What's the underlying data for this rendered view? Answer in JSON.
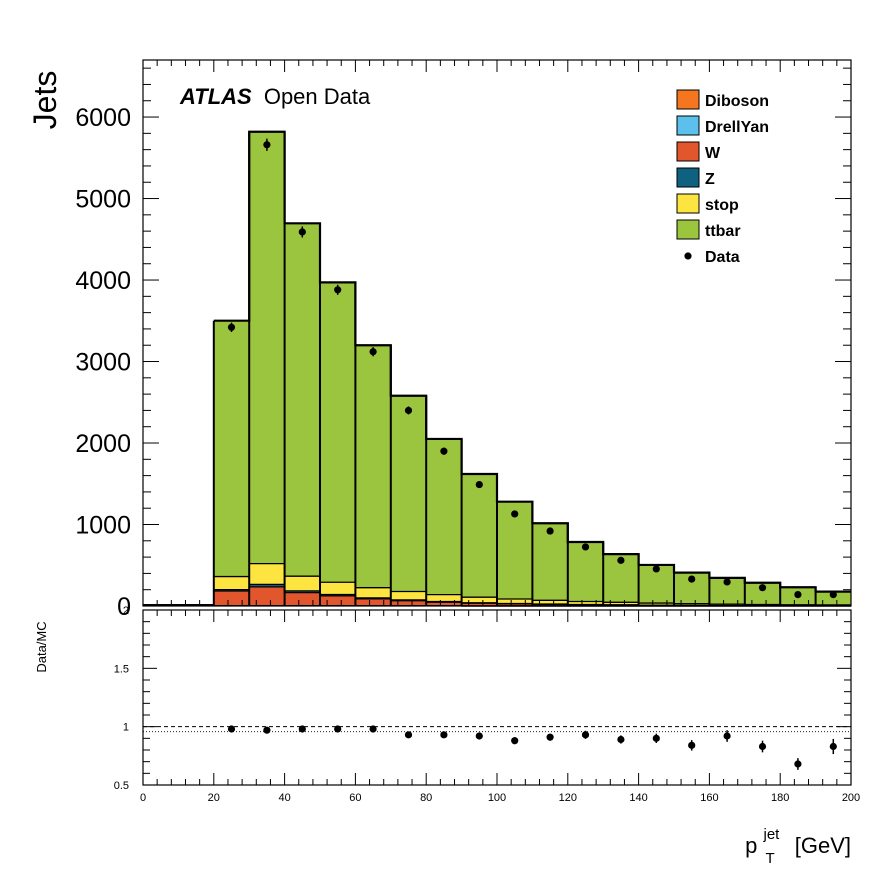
{
  "chart_data": [
    {
      "type": "bar",
      "stacked": true,
      "title": "",
      "ylabel": "Jets",
      "xlim": [
        0,
        200
      ],
      "ylim": [
        0,
        6700
      ],
      "yticks": [
        0,
        1000,
        2000,
        3000,
        4000,
        5000,
        6000
      ],
      "atlas_label": "ATLAS",
      "atlas_sublabel": "Open Data",
      "legend_placement": "top-right",
      "bin_edges": [
        20,
        30,
        40,
        50,
        60,
        70,
        80,
        90,
        100,
        110,
        120,
        130,
        140,
        150,
        160,
        170,
        180,
        190,
        200
      ],
      "series": [
        {
          "name": "Diboson",
          "color": "#f5761f",
          "values": [
            3,
            4,
            3,
            3,
            2,
            2,
            2,
            1,
            1,
            1,
            1,
            1,
            1,
            1,
            1,
            0,
            0,
            0
          ]
        },
        {
          "name": "DrellYan",
          "color": "#5bc0eb",
          "values": [
            1,
            1,
            1,
            1,
            1,
            1,
            0,
            0,
            0,
            0,
            0,
            0,
            0,
            0,
            0,
            0,
            0,
            0
          ]
        },
        {
          "name": "W",
          "color": "#e2562d",
          "values": [
            180,
            230,
            160,
            120,
            85,
            62,
            45,
            33,
            25,
            19,
            14,
            11,
            8,
            6,
            5,
            4,
            3,
            3
          ]
        },
        {
          "name": "Z",
          "color": "#0f6182",
          "values": [
            17,
            30,
            22,
            17,
            12,
            10,
            8,
            6,
            5,
            4,
            3,
            3,
            2,
            2,
            1,
            1,
            1,
            1
          ]
        },
        {
          "name": "stop",
          "color": "#fde440",
          "values": [
            160,
            255,
            180,
            150,
            125,
            103,
            85,
            68,
            55,
            46,
            37,
            30,
            25,
            20,
            16,
            13,
            11,
            9
          ]
        },
        {
          "name": "ttbar",
          "color": "#9bc43f",
          "values": [
            3140,
            5300,
            4330,
            3680,
            2975,
            2402,
            1910,
            1512,
            1194,
            945,
            730,
            592,
            468,
            381,
            322,
            267,
            215,
            163
          ]
        }
      ],
      "data_series": {
        "name": "Data",
        "x": [
          25,
          35,
          45,
          55,
          65,
          75,
          85,
          95,
          105,
          115,
          125,
          135,
          145,
          155,
          165,
          175,
          185,
          195
        ],
        "y": [
          3420,
          5660,
          4590,
          3880,
          3120,
          2400,
          1900,
          1490,
          1130,
          920,
          725,
          560,
          455,
          330,
          295,
          225,
          140,
          140
        ],
        "err": [
          58,
          75,
          68,
          62,
          56,
          49,
          44,
          39,
          34,
          30,
          27,
          24,
          21,
          18,
          17,
          15,
          12,
          12
        ]
      }
    },
    {
      "type": "scatter",
      "ylabel": "Data/MC",
      "xlabel_main": "p",
      "xlabel_sup": "jet",
      "xlabel_sub": "T",
      "xlabel_unit": "[GeV]",
      "xlim": [
        0,
        200
      ],
      "ylim": [
        0.5,
        2
      ],
      "xticks": [
        0,
        20,
        40,
        60,
        80,
        100,
        120,
        140,
        160,
        180,
        200
      ],
      "yticks": [
        0.5,
        1,
        1.5,
        2
      ],
      "ytick_labels": [
        "0.5",
        "1",
        "1.5",
        "2"
      ],
      "reference_line": 1,
      "ratio_x": [
        25,
        35,
        45,
        55,
        65,
        75,
        85,
        95,
        105,
        115,
        125,
        135,
        145,
        155,
        165,
        175,
        185,
        195
      ],
      "ratio_y": [
        0.98,
        0.97,
        0.98,
        0.98,
        0.98,
        0.93,
        0.93,
        0.92,
        0.88,
        0.91,
        0.93,
        0.89,
        0.9,
        0.84,
        0.92,
        0.83,
        0.68,
        0.83
      ],
      "ratio_err": [
        0.02,
        0.015,
        0.02,
        0.02,
        0.02,
        0.02,
        0.025,
        0.025,
        0.03,
        0.03,
        0.035,
        0.035,
        0.04,
        0.045,
        0.05,
        0.05,
        0.05,
        0.065
      ]
    }
  ]
}
